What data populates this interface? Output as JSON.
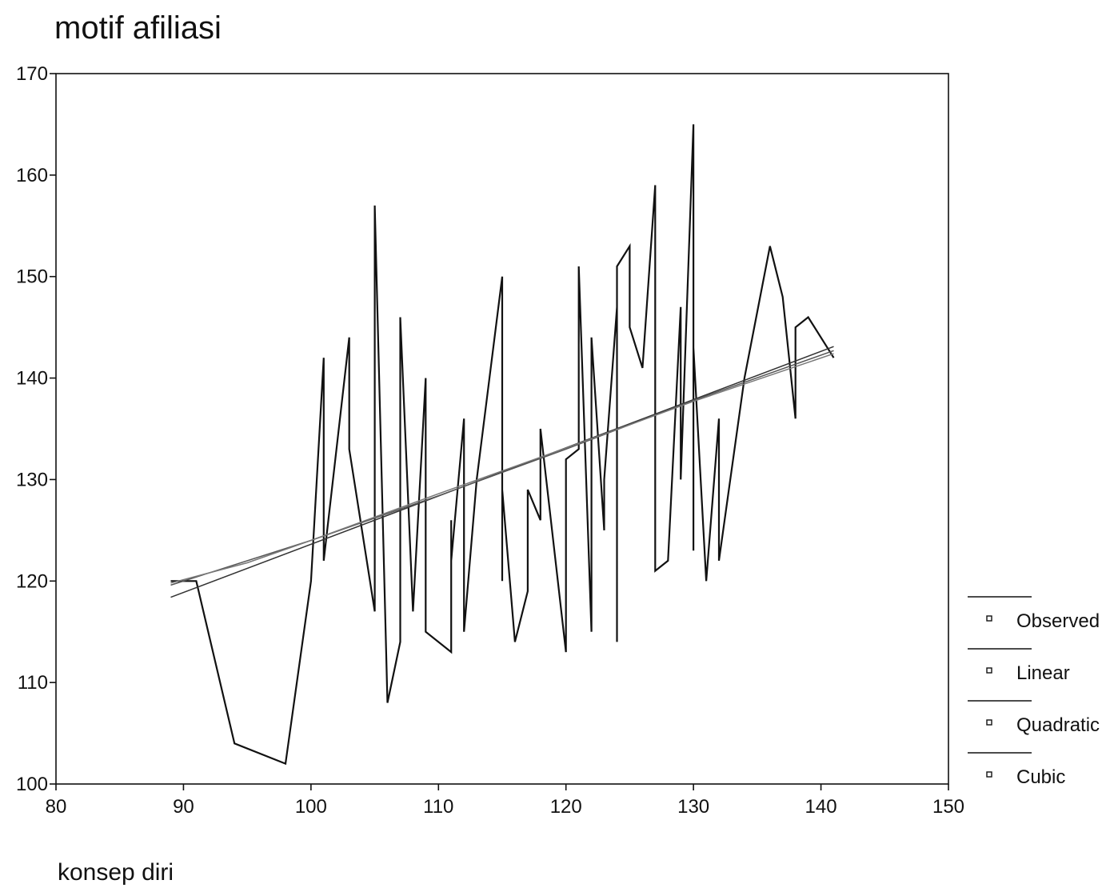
{
  "chart_data": {
    "type": "line",
    "title": "motif afiliasi",
    "xlabel": "konsep diri",
    "ylabel": "",
    "xlim": [
      80,
      150
    ],
    "ylim": [
      100,
      170
    ],
    "xticks": [
      80,
      90,
      100,
      110,
      120,
      130,
      140,
      150
    ],
    "yticks": [
      100,
      110,
      120,
      130,
      140,
      150,
      160,
      170
    ],
    "grid": false,
    "legend_position": "right",
    "series": [
      {
        "name": "Observed",
        "color": "#111111",
        "x": [
          89,
          91,
          94,
          98,
          100,
          101,
          101,
          103,
          103,
          105,
          105,
          106,
          107,
          107,
          108,
          109,
          109,
          111,
          111,
          111,
          112,
          112,
          113,
          115,
          115,
          115,
          116,
          117,
          117,
          118,
          118,
          120,
          120,
          121,
          121,
          122,
          122,
          123,
          123,
          124,
          124,
          124,
          125,
          125,
          126,
          127,
          127,
          128,
          129,
          129,
          130,
          130,
          130,
          131,
          132,
          132,
          134,
          136,
          137,
          138,
          138,
          139,
          141
        ],
        "y": [
          120,
          120,
          104,
          102,
          120,
          142,
          122,
          144,
          133,
          117,
          157,
          108,
          114,
          146,
          117,
          140,
          115,
          113,
          126,
          122,
          136,
          115,
          130,
          150,
          120,
          129,
          114,
          119,
          129,
          126,
          135,
          113,
          132,
          133,
          151,
          115,
          144,
          125,
          130,
          147,
          114,
          151,
          153,
          145,
          141,
          159,
          121,
          122,
          147,
          130,
          165,
          123,
          143,
          120,
          136,
          122,
          140,
          153,
          148,
          136,
          145,
          146,
          142
        ]
      },
      {
        "name": "Linear",
        "color": "#333333",
        "x": [
          89,
          141
        ],
        "y": [
          118.4,
          143.1
        ]
      },
      {
        "name": "Quadratic",
        "color": "#555555",
        "x": [
          89,
          100,
          110,
          120,
          130,
          141
        ],
        "y": [
          119.6,
          124.0,
          128.4,
          133.0,
          137.8,
          142.7
        ]
      },
      {
        "name": "Cubic",
        "color": "#777777",
        "x": [
          89,
          95,
          100,
          110,
          120,
          130,
          141
        ],
        "y": [
          119.8,
          121.8,
          124.0,
          128.6,
          133.1,
          137.7,
          142.4
        ]
      }
    ]
  }
}
